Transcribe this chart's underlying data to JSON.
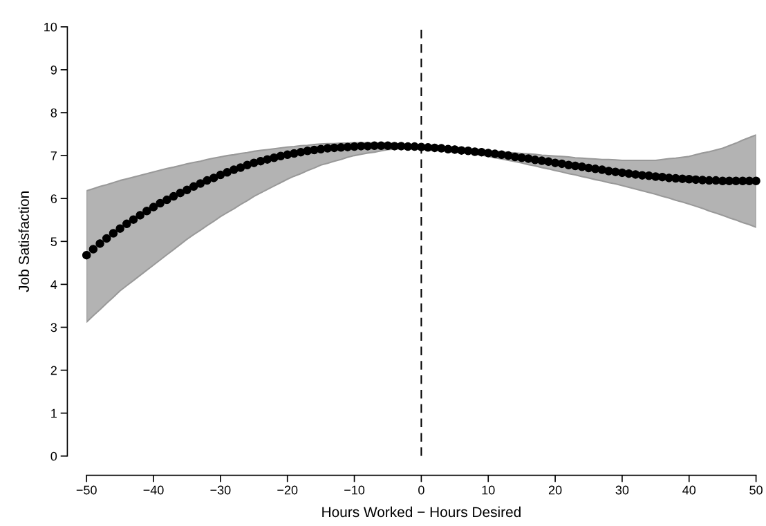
{
  "chart_data": {
    "type": "scatter",
    "xlabel": "Hours Worked − Hours Desired",
    "ylabel": "Job Satisfaction",
    "x": [
      -50,
      -49,
      -48,
      -47,
      -46,
      -45,
      -44,
      -43,
      -42,
      -41,
      -40,
      -39,
      -38,
      -37,
      -36,
      -35,
      -34,
      -33,
      -32,
      -31,
      -30,
      -29,
      -28,
      -27,
      -26,
      -25,
      -24,
      -23,
      -22,
      -21,
      -20,
      -19,
      -18,
      -17,
      -16,
      -15,
      -14,
      -13,
      -12,
      -11,
      -10,
      -9,
      -8,
      -7,
      -6,
      -5,
      -4,
      -3,
      -2,
      -1,
      0,
      1,
      2,
      3,
      4,
      5,
      6,
      7,
      8,
      9,
      10,
      11,
      12,
      13,
      14,
      15,
      16,
      17,
      18,
      19,
      20,
      21,
      22,
      23,
      24,
      25,
      26,
      27,
      28,
      29,
      30,
      31,
      32,
      33,
      34,
      35,
      36,
      37,
      38,
      39,
      40,
      41,
      42,
      43,
      44,
      45,
      46,
      47,
      48,
      49,
      50
    ],
    "series": [
      {
        "color": "#000000",
        "values": [
          4.68,
          4.82,
          4.95,
          5.07,
          5.19,
          5.3,
          5.41,
          5.51,
          5.61,
          5.71,
          5.8,
          5.89,
          5.97,
          6.05,
          6.13,
          6.2,
          6.28,
          6.35,
          6.42,
          6.48,
          6.55,
          6.61,
          6.67,
          6.72,
          6.78,
          6.83,
          6.87,
          6.91,
          6.95,
          6.99,
          7.02,
          7.05,
          7.08,
          7.11,
          7.13,
          7.15,
          7.17,
          7.18,
          7.19,
          7.2,
          7.21,
          7.22,
          7.22,
          7.23,
          7.23,
          7.23,
          7.22,
          7.22,
          7.21,
          7.21,
          7.2,
          7.19,
          7.18,
          7.17,
          7.15,
          7.14,
          7.12,
          7.11,
          7.09,
          7.08,
          7.06,
          7.04,
          7.02,
          7.0,
          6.97,
          6.95,
          6.93,
          6.9,
          6.88,
          6.86,
          6.83,
          6.81,
          6.78,
          6.76,
          6.74,
          6.71,
          6.69,
          6.67,
          6.64,
          6.62,
          6.6,
          6.58,
          6.56,
          6.54,
          6.53,
          6.51,
          6.5,
          6.48,
          6.47,
          6.46,
          6.45,
          6.44,
          6.43,
          6.42,
          6.42,
          6.41,
          6.41,
          6.41,
          6.41,
          6.41,
          6.41
        ],
        "upper": [
          6.18,
          6.23,
          6.28,
          6.32,
          6.37,
          6.42,
          6.46,
          6.5,
          6.54,
          6.58,
          6.62,
          6.66,
          6.7,
          6.73,
          6.77,
          6.81,
          6.84,
          6.87,
          6.91,
          6.94,
          6.97,
          7.0,
          7.02,
          7.05,
          7.07,
          7.1,
          7.12,
          7.14,
          7.16,
          7.18,
          7.2,
          7.21,
          7.23,
          7.24,
          7.26,
          7.27,
          7.28,
          7.28,
          7.29,
          7.29,
          7.3,
          7.3,
          7.3,
          7.29,
          7.29,
          7.29,
          7.28,
          7.27,
          7.25,
          7.24,
          7.23,
          7.22,
          7.21,
          7.19,
          7.18,
          7.17,
          7.16,
          7.15,
          7.13,
          7.12,
          7.11,
          7.1,
          7.09,
          7.07,
          7.06,
          7.05,
          7.04,
          7.03,
          7.01,
          7.0,
          6.99,
          6.98,
          6.97,
          6.95,
          6.94,
          6.93,
          6.92,
          6.91,
          6.91,
          6.9,
          6.89,
          6.89,
          6.89,
          6.89,
          6.89,
          6.89,
          6.91,
          6.93,
          6.94,
          6.96,
          6.98,
          7.02,
          7.06,
          7.09,
          7.13,
          7.17,
          7.23,
          7.29,
          7.36,
          7.42,
          7.48
        ],
        "lower": [
          3.12,
          3.27,
          3.41,
          3.56,
          3.7,
          3.85,
          3.97,
          4.09,
          4.21,
          4.33,
          4.45,
          4.57,
          4.69,
          4.81,
          4.93,
          5.05,
          5.16,
          5.26,
          5.37,
          5.47,
          5.58,
          5.67,
          5.76,
          5.86,
          5.95,
          6.05,
          6.13,
          6.21,
          6.29,
          6.37,
          6.45,
          6.52,
          6.58,
          6.65,
          6.71,
          6.78,
          6.82,
          6.87,
          6.91,
          6.96,
          7.0,
          7.03,
          7.06,
          7.08,
          7.11,
          7.14,
          7.15,
          7.16,
          7.16,
          7.17,
          7.18,
          7.17,
          7.16,
          7.14,
          7.13,
          7.12,
          7.09,
          7.06,
          7.04,
          7.01,
          6.98,
          6.95,
          6.92,
          6.89,
          6.86,
          6.83,
          6.79,
          6.76,
          6.72,
          6.69,
          6.65,
          6.62,
          6.58,
          6.55,
          6.51,
          6.48,
          6.44,
          6.41,
          6.37,
          6.34,
          6.3,
          6.26,
          6.22,
          6.18,
          6.14,
          6.1,
          6.05,
          6.01,
          5.96,
          5.92,
          5.87,
          5.82,
          5.77,
          5.71,
          5.66,
          5.61,
          5.55,
          5.5,
          5.44,
          5.39,
          5.33
        ]
      }
    ],
    "marker": "circle",
    "xlim": [
      -50,
      50
    ],
    "xticks": [
      -50,
      -40,
      -30,
      -20,
      -10,
      0,
      10,
      20,
      30,
      40,
      50
    ],
    "ylim": [
      0,
      10
    ],
    "yticks": [
      0,
      1,
      2,
      3,
      4,
      5,
      6,
      7,
      8,
      9,
      10
    ],
    "ref_lines": [
      {
        "axis": "x",
        "value": 0,
        "color": "#000000",
        "line_style": "dashed"
      }
    ],
    "grid": false,
    "legend": false
  }
}
